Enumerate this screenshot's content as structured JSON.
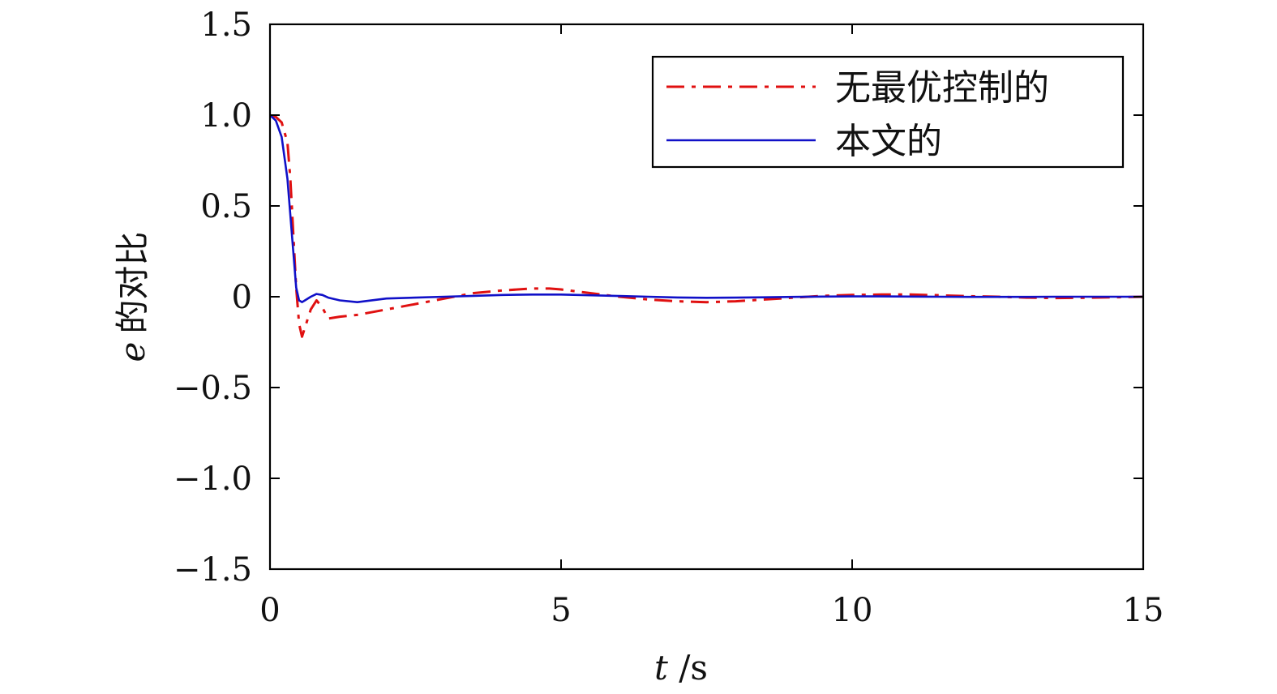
{
  "chart_data": {
    "type": "line",
    "xlabel_var": "t",
    "xlabel_unit": " /s",
    "ylabel_var": "e",
    "ylabel_text": "的对比",
    "xlim": [
      0,
      15
    ],
    "ylim": [
      -1.5,
      1.5
    ],
    "xticks": [
      0,
      5,
      10,
      15
    ],
    "xtick_labels": [
      "0",
      "5",
      "10",
      "15"
    ],
    "yticks": [
      -1.5,
      -1.0,
      -0.5,
      0,
      0.5,
      1.0,
      1.5
    ],
    "ytick_labels": [
      "−1.5",
      "−1.0",
      "−0.5",
      "0",
      "0.5",
      "1.0",
      "1.5"
    ],
    "grid": false,
    "legend_position": "top-right",
    "series": [
      {
        "name": "无最优控制的",
        "color": "#e01010",
        "style": "dashdot",
        "x": [
          0,
          0.1,
          0.2,
          0.3,
          0.35,
          0.4,
          0.45,
          0.5,
          0.55,
          0.6,
          0.7,
          0.8,
          0.9,
          1.0,
          1.2,
          1.5,
          2.0,
          2.5,
          3.0,
          3.5,
          4.0,
          4.5,
          4.8,
          5.0,
          5.5,
          6.0,
          6.5,
          7.0,
          7.5,
          8.0,
          8.5,
          9.0,
          9.5,
          10.0,
          10.5,
          11.0,
          11.5,
          12.0,
          12.5,
          13.0,
          13.5,
          14.0,
          14.5,
          15.0
        ],
        "y": [
          1.0,
          0.99,
          0.96,
          0.85,
          0.65,
          0.35,
          0.05,
          -0.15,
          -0.22,
          -0.17,
          -0.07,
          -0.02,
          -0.06,
          -0.12,
          -0.11,
          -0.1,
          -0.07,
          -0.04,
          -0.01,
          0.02,
          0.035,
          0.045,
          0.045,
          0.04,
          0.02,
          0.0,
          -0.015,
          -0.025,
          -0.03,
          -0.025,
          -0.015,
          -0.005,
          0.005,
          0.01,
          0.012,
          0.012,
          0.008,
          0.003,
          0.0,
          -0.005,
          -0.007,
          -0.006,
          -0.003,
          0.0
        ]
      },
      {
        "name": "本文的",
        "color": "#1010c8",
        "style": "solid",
        "x": [
          0,
          0.1,
          0.2,
          0.3,
          0.35,
          0.4,
          0.45,
          0.5,
          0.55,
          0.6,
          0.7,
          0.8,
          0.9,
          1.0,
          1.2,
          1.5,
          2.0,
          2.5,
          3.0,
          3.5,
          4.0,
          4.5,
          5.0,
          5.5,
          6.0,
          6.5,
          7.0,
          7.5,
          8.0,
          8.5,
          9.0,
          9.5,
          10.0,
          10.5,
          11.0,
          11.5,
          12.0,
          12.5,
          13.0,
          13.5,
          14.0,
          14.5,
          15.0
        ],
        "y": [
          1.0,
          0.97,
          0.88,
          0.65,
          0.45,
          0.25,
          0.05,
          -0.02,
          -0.03,
          -0.02,
          0.0,
          0.015,
          0.01,
          -0.005,
          -0.02,
          -0.03,
          -0.01,
          -0.005,
          0.0,
          0.005,
          0.01,
          0.012,
          0.012,
          0.008,
          0.004,
          0.0,
          -0.004,
          -0.006,
          -0.005,
          -0.003,
          -0.001,
          0.001,
          0.002,
          0.002,
          0.001,
          0.0,
          -0.001,
          -0.001,
          -0.001,
          0.0,
          0.0,
          0.0,
          0.0
        ]
      }
    ]
  }
}
